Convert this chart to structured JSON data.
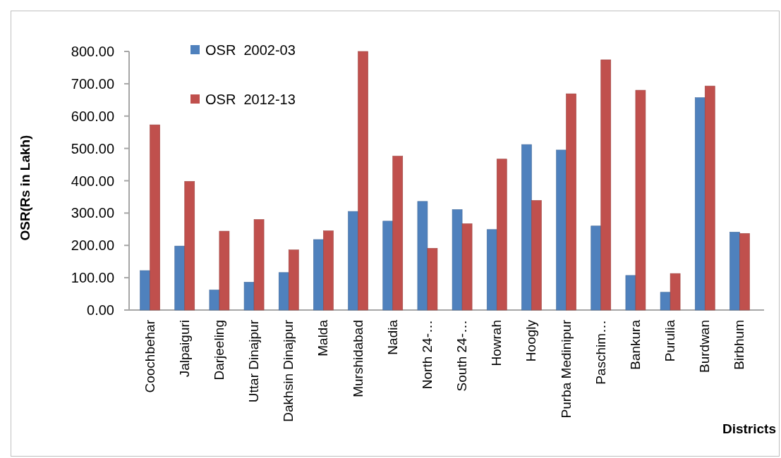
{
  "chart_data": {
    "type": "bar",
    "xlabel": "Districts",
    "ylabel": "OSR(Rs in Lakh)",
    "categories": [
      "Coochbehar",
      "Jalpaiguri",
      "Darjeeling",
      "Uttar Dinajpur",
      "Dakhsin Dinajpur",
      "Malda",
      "Murshidabad",
      "Nadia",
      "North 24-…",
      "South 24-…",
      "Howrah",
      "Hoogly",
      "Purba Medinipur",
      "Paschim…",
      "Bankura",
      "Purulia",
      "Burdwan",
      "Birbhum"
    ],
    "series": [
      {
        "name": "OSR  2002-03",
        "color": "#4f81bd",
        "values": [
          122,
          198,
          62,
          86,
          116,
          218,
          305,
          275,
          336,
          311,
          249,
          512,
          495,
          260,
          107,
          55,
          657,
          241
        ]
      },
      {
        "name": "OSR  2012-13",
        "color": "#c0504d",
        "values": [
          573,
          398,
          244,
          280,
          186,
          245,
          800,
          476,
          191,
          267,
          467,
          339,
          669,
          774,
          680,
          113,
          693,
          237
        ]
      }
    ],
    "ylim": [
      0,
      800
    ],
    "yticks": [
      {
        "value": 0,
        "label": "0.00"
      },
      {
        "value": 100,
        "label": "100.00"
      },
      {
        "value": 200,
        "label": "200.00"
      },
      {
        "value": 300,
        "label": "300.00"
      },
      {
        "value": 400,
        "label": "400.00"
      },
      {
        "value": 500,
        "label": "500.00"
      },
      {
        "value": 600,
        "label": "600.00"
      },
      {
        "value": 700,
        "label": "700.00"
      },
      {
        "value": 800,
        "label": "800.00"
      }
    ],
    "legend": "top left"
  }
}
